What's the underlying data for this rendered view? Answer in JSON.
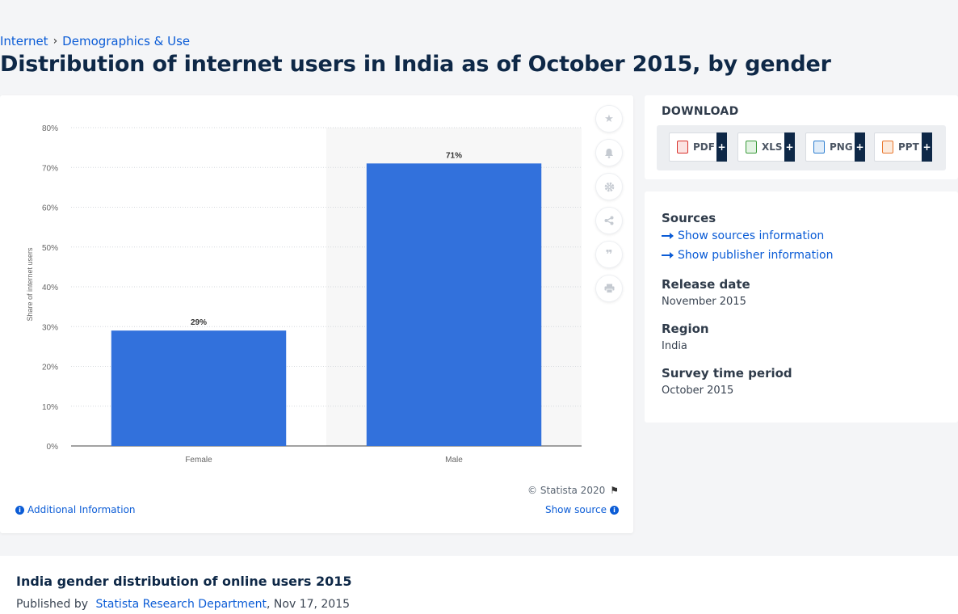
{
  "breadcrumb": {
    "items": [
      "Internet",
      "Demographics & Use"
    ],
    "separator": "›"
  },
  "page_title": "Distribution of internet users in India as of October 2015, by gender",
  "colors": {
    "bar": "#3271dc",
    "link": "#0b5cd6",
    "title": "#0e2847"
  },
  "chart_data": {
    "type": "bar",
    "categories": [
      "Female",
      "Male"
    ],
    "values": [
      29,
      71
    ],
    "data_labels": [
      "29%",
      "71%"
    ],
    "ylabel": "Share of internet users",
    "xlabel": "",
    "ylim": [
      0,
      80
    ],
    "yticks": [
      "0%",
      "10%",
      "20%",
      "30%",
      "40%",
      "50%",
      "60%",
      "70%",
      "80%"
    ],
    "grid": true,
    "legend": "none"
  },
  "chart_tools": {
    "icons": [
      "star-icon",
      "bell-icon",
      "gear-icon",
      "share-icon",
      "quote-icon",
      "print-icon"
    ]
  },
  "chart_footer": {
    "credit": "© Statista 2020",
    "additional_info": "Additional Information",
    "show_source": "Show source"
  },
  "download": {
    "title": "DOWNLOAD",
    "buttons": [
      {
        "label": "PDF",
        "color": "#d9312b"
      },
      {
        "label": "XLS",
        "color": "#3a9a3a"
      },
      {
        "label": "PNG",
        "color": "#2f7fd0"
      },
      {
        "label": "PPT",
        "color": "#e8762d"
      }
    ],
    "plus": "+"
  },
  "meta": {
    "sources_heading": "Sources",
    "show_sources": "Show sources information",
    "show_publisher": "Show publisher information",
    "release_heading": "Release date",
    "release_value": "November 2015",
    "region_heading": "Region",
    "region_value": "India",
    "survey_heading": "Survey time period",
    "survey_value": "October 2015"
  },
  "bottom": {
    "title": "India gender distribution of online users 2015",
    "published_prefix": "Published by",
    "publisher": "Statista Research Department",
    "date": ", Nov 17, 2015"
  }
}
